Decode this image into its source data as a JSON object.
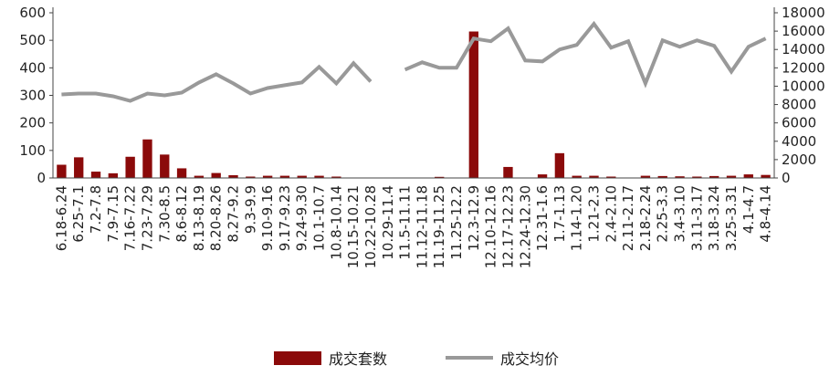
{
  "chart_data": {
    "type": "bar+line",
    "title": "",
    "xlabel": "",
    "ylabel": "",
    "y_left_lim": [
      0,
      600
    ],
    "y_left_ticks": [
      0,
      100,
      200,
      300,
      400,
      500,
      600
    ],
    "y_right_lim": [
      0,
      18000
    ],
    "y_right_ticks": [
      0,
      2000,
      4000,
      6000,
      8000,
      10000,
      12000,
      14000,
      16000,
      18000
    ],
    "grid": false,
    "legend_position": "bottom",
    "categories": [
      "6.18-6.24",
      "6.25-7.1",
      "7.2-7.8",
      "7.9-7.15",
      "7.16-7.22",
      "7.23-7.29",
      "7.30-8.5",
      "8.6-8.12",
      "8.13-8.19",
      "8.20-8.26",
      "8.27-9.2",
      "9.3-9.9",
      "9.10-9.16",
      "9.17-9.23",
      "9.24-9.30",
      "10.1-10.7",
      "10.8-10.14",
      "10.15-10.21",
      "10.22-10.28",
      "10.29-11.4",
      "11.5-11.11",
      "11.12-11.18",
      "11.19-11.25",
      "11.25-12.2",
      "12.3-12.9",
      "12.10-12.16",
      "12.17-12.23",
      "12.24-12.30",
      "12.31-1.6",
      "1.7-1.13",
      "1.14-1.20",
      "1.21-2.3",
      "2.4-2.10",
      "2.11-2.17",
      "2.18-2.24",
      "2.25-3.3",
      "3.4-3.10",
      "3.11-3.17",
      "3.18-3.24",
      "3.25-3.31",
      "4.1-4.7",
      "4.8-4.14"
    ],
    "series": [
      {
        "name": "成交套数",
        "type": "bar",
        "axis": "left",
        "color": "#8B0A0A",
        "values": [
          48,
          75,
          23,
          17,
          77,
          140,
          85,
          35,
          8,
          18,
          10,
          5,
          8,
          8,
          8,
          8,
          5,
          null,
          null,
          null,
          null,
          null,
          4,
          null,
          532,
          null,
          40,
          null,
          13,
          90,
          8,
          8,
          5,
          null,
          8,
          7,
          6,
          5,
          7,
          8,
          13,
          11
        ]
      },
      {
        "name": "成交均价",
        "type": "line",
        "axis": "right",
        "color": "#999999",
        "values": [
          9100,
          9200,
          9200,
          8900,
          8400,
          9200,
          9000,
          9300,
          10400,
          11300,
          10300,
          9200,
          9800,
          10100,
          10400,
          12100,
          10300,
          12500,
          10500,
          null,
          11800,
          12600,
          12000,
          12000,
          15200,
          14900,
          16300,
          12800,
          12700,
          14000,
          14500,
          16800,
          14200,
          14900,
          10300,
          15000,
          14300,
          15000,
          14400,
          11600,
          14300,
          15200
        ]
      }
    ]
  }
}
